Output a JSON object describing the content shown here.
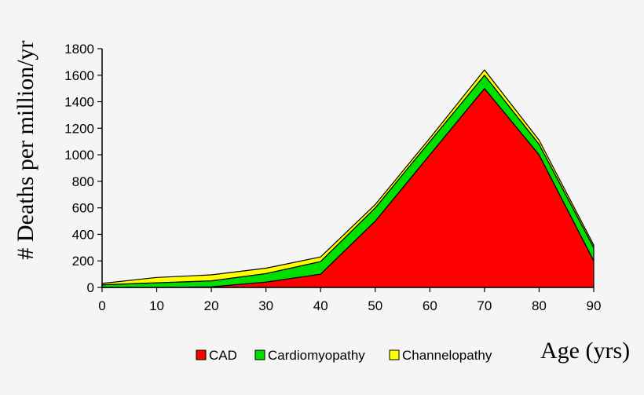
{
  "chart_data": {
    "type": "area",
    "stacked": true,
    "x": [
      0,
      10,
      20,
      30,
      40,
      50,
      60,
      70,
      80,
      90
    ],
    "series": [
      {
        "name": "CAD",
        "color": "#ff0000",
        "values": [
          0,
          0,
          5,
          40,
          100,
          500,
          1000,
          1500,
          1000,
          200
        ]
      },
      {
        "name": "Cardiomyopathy",
        "color": "#00e000",
        "values": [
          20,
          35,
          45,
          65,
          95,
          100,
          100,
          100,
          80,
          100
        ]
      },
      {
        "name": "Channelopathy",
        "color": "#ffff00",
        "values": [
          10,
          40,
          45,
          40,
          35,
          25,
          25,
          40,
          30,
          20
        ]
      }
    ],
    "ylim": [
      0,
      1800
    ],
    "yticks": [
      "0",
      "200",
      "400",
      "600",
      "800",
      "1000",
      "1200",
      "1400",
      "1600",
      "1800"
    ],
    "xticks": [
      "0",
      "10",
      "20",
      "30",
      "40",
      "50",
      "60",
      "70",
      "80",
      "90"
    ],
    "ylabel": "# Deaths per million/yr",
    "xlabel": "Age (yrs)",
    "legend_position": "bottom",
    "grid": false
  }
}
